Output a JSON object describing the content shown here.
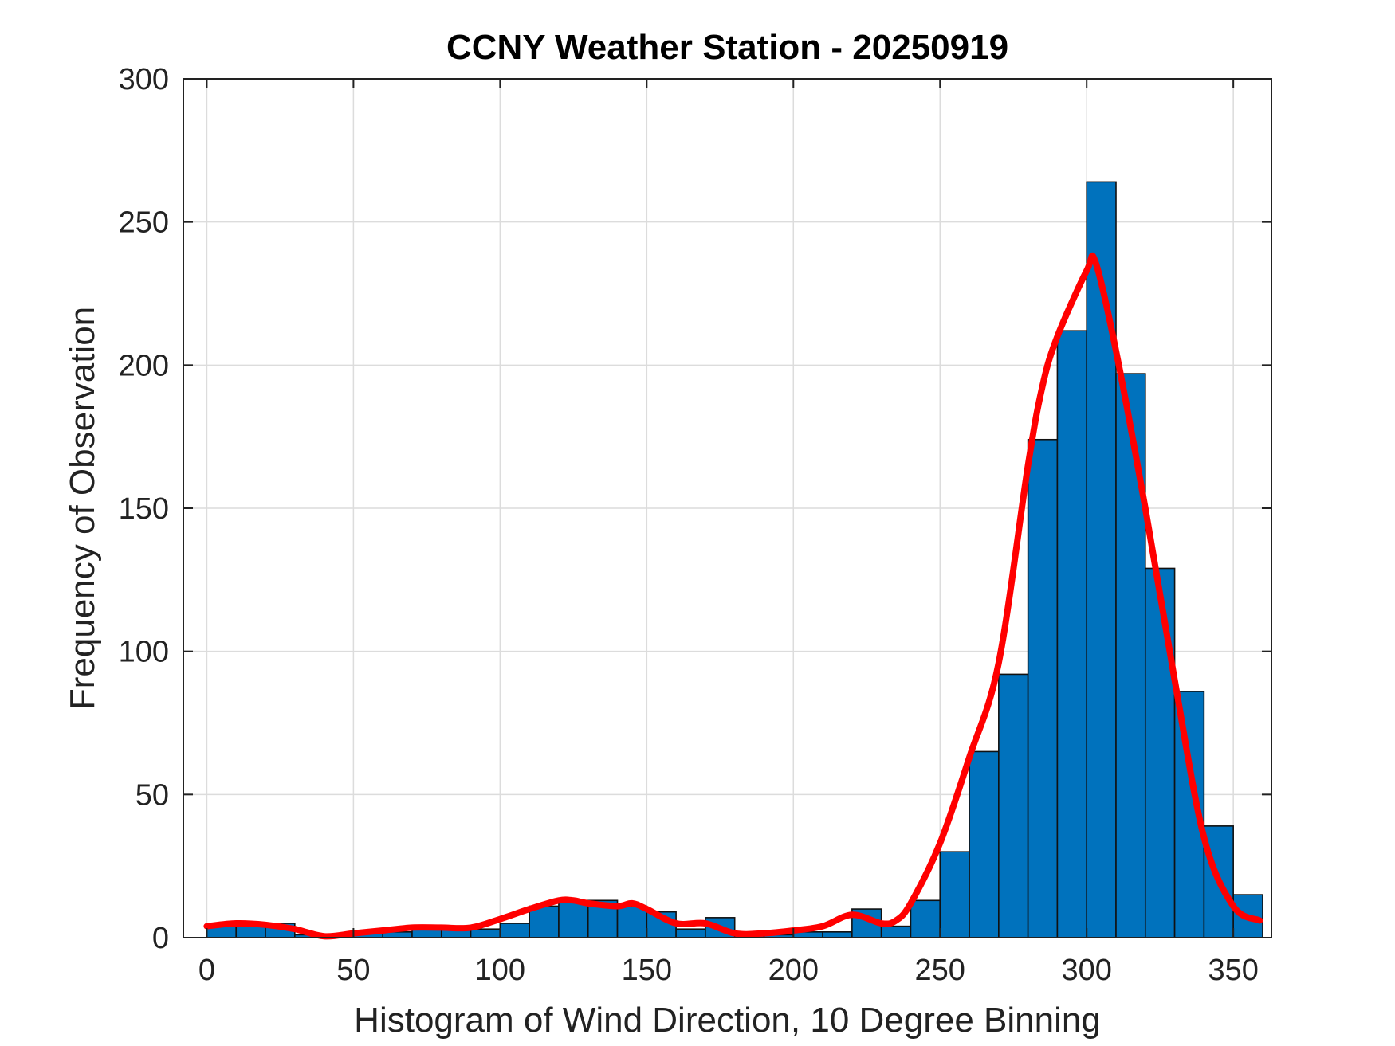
{
  "chart_data": {
    "type": "bar",
    "title": "CCNY Weather Station - 20250919",
    "xlabel": "Histogram of Wind Direction, 10 Degree Binning",
    "ylabel": "Frequency of Observation",
    "xlim": [
      -8,
      363
    ],
    "ylim": [
      0,
      300
    ],
    "x_ticks": [
      0,
      50,
      100,
      150,
      200,
      250,
      300,
      350
    ],
    "y_ticks": [
      0,
      50,
      100,
      150,
      200,
      250,
      300
    ],
    "grid": true,
    "bar_color": "#0072BD",
    "curve_color": "#FF0000",
    "bin_edges": [
      0,
      10,
      20,
      30,
      40,
      50,
      60,
      70,
      80,
      90,
      100,
      110,
      120,
      130,
      140,
      150,
      160,
      170,
      180,
      190,
      200,
      210,
      220,
      230,
      240,
      250,
      260,
      270,
      280,
      290,
      300,
      310,
      320,
      330,
      340,
      350,
      360
    ],
    "values": [
      5,
      4,
      5,
      1,
      1,
      2,
      2,
      3,
      3,
      3,
      5,
      11,
      13,
      13,
      11,
      9,
      3,
      7,
      1,
      1,
      2,
      2,
      10,
      4,
      13,
      30,
      65,
      92,
      174,
      212,
      264,
      197,
      129,
      86,
      39,
      15
    ],
    "smooth_curve": {
      "x": [
        0,
        10,
        20,
        30,
        40,
        50,
        60,
        70,
        80,
        90,
        100,
        110,
        120,
        125,
        130,
        140,
        145,
        150,
        160,
        170,
        180,
        190,
        200,
        210,
        220,
        230,
        235,
        240,
        250,
        260,
        270,
        280,
        285,
        290,
        300,
        303,
        310,
        320,
        330,
        340,
        350,
        359
      ],
      "y": [
        4,
        5,
        4.5,
        3,
        0.5,
        1.5,
        2.5,
        3.5,
        3.5,
        3.5,
        6.5,
        10,
        13,
        13,
        12,
        11,
        12,
        10,
        5,
        5,
        1.5,
        1.5,
        2.5,
        4,
        8,
        5,
        6,
        12,
        33,
        63,
        96,
        165,
        193,
        210,
        233,
        236,
        205,
        150,
        90,
        35,
        11,
        6
      ]
    }
  }
}
